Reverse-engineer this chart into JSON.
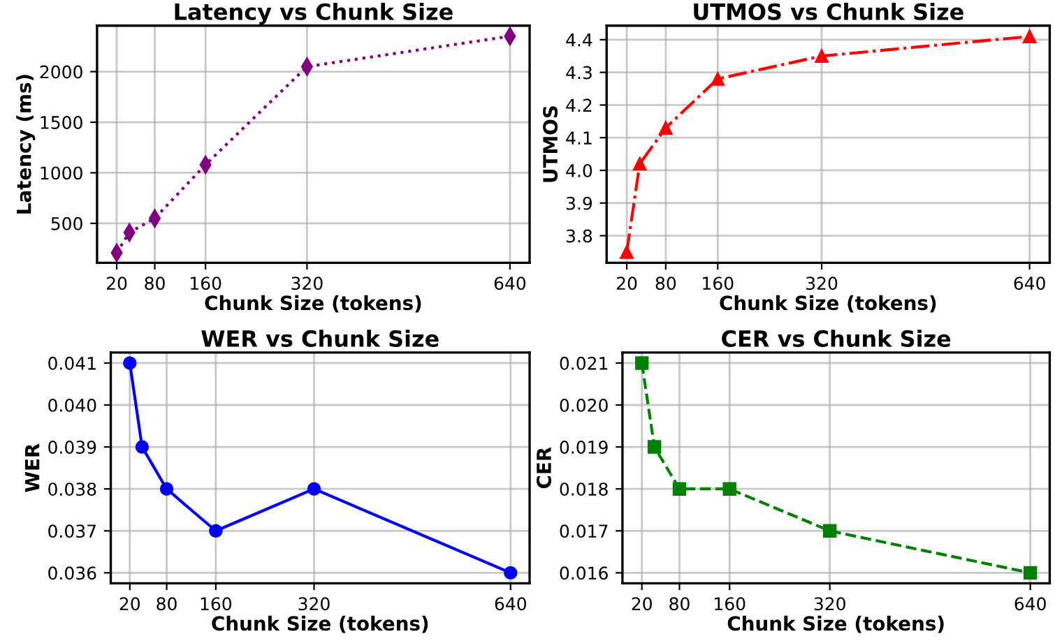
{
  "chart_data": [
    {
      "type": "line",
      "title": "Latency vs Chunk Size",
      "xlabel": "Chunk Size (tokens)",
      "ylabel": "Latency (ms)",
      "x": [
        20,
        40,
        80,
        160,
        320,
        640
      ],
      "series": [
        {
          "color": "#800080",
          "values": [
            210,
            410,
            550,
            1080,
            2050,
            2350
          ],
          "errors": [
            40,
            40,
            40,
            40,
            40,
            40
          ]
        }
      ],
      "xlim": [
        -11,
        671
      ],
      "xticks": [
        20,
        80,
        160,
        320,
        640
      ],
      "ylim": [
        110,
        2455
      ],
      "yticks": [
        500,
        1000,
        1500,
        2000
      ],
      "grid": true,
      "marker": "diamond",
      "line_style": "dotted"
    },
    {
      "type": "line",
      "title": "UTMOS vs Chunk Size",
      "xlabel": "Chunk Size (tokens)",
      "ylabel": "UTMOS",
      "x": [
        20,
        40,
        80,
        160,
        320,
        640
      ],
      "series": [
        {
          "color": "#ff0000",
          "values": [
            3.75,
            4.02,
            4.13,
            4.28,
            4.35,
            4.41
          ]
        }
      ],
      "xlim": [
        -11,
        671
      ],
      "xticks": [
        20,
        80,
        160,
        320,
        640
      ],
      "ylim": [
        3.717,
        4.443
      ],
      "yticks": [
        3.8,
        3.9,
        {
          "value": 4.0,
          "label": "4.0"
        },
        4.1,
        4.2,
        4.3,
        4.4
      ],
      "grid": true,
      "marker": "triangle",
      "line_style": "dashdot"
    },
    {
      "type": "line",
      "title": "WER vs Chunk Size",
      "xlabel": "Chunk Size (tokens)",
      "ylabel": "WER",
      "x": [
        20,
        40,
        80,
        160,
        320,
        640
      ],
      "series": [
        {
          "color": "#0000ff",
          "values": [
            0.041,
            0.039,
            0.038,
            0.037,
            0.038,
            0.036
          ]
        }
      ],
      "xlim": [
        -11,
        671
      ],
      "xticks": [
        20,
        80,
        160,
        320,
        640
      ],
      "ylim": [
        0.03575,
        0.04125
      ],
      "yticks": [
        0.036,
        0.037,
        0.038,
        0.039,
        {
          "value": 0.04,
          "label": "0.040"
        },
        0.041
      ],
      "grid": true,
      "marker": "circle",
      "line_style": "solid"
    },
    {
      "type": "line",
      "title": "CER vs Chunk Size",
      "xlabel": "Chunk Size (tokens)",
      "ylabel": "CER",
      "x": [
        20,
        40,
        80,
        160,
        320,
        640
      ],
      "series": [
        {
          "color": "#008000",
          "values": [
            0.021,
            0.019,
            0.018,
            0.018,
            0.017,
            0.016
          ]
        }
      ],
      "xlim": [
        -11,
        671
      ],
      "xticks": [
        20,
        80,
        160,
        320,
        640
      ],
      "ylim": [
        0.01575,
        0.02125
      ],
      "yticks": [
        0.016,
        0.017,
        0.018,
        0.019,
        {
          "value": 0.02,
          "label": "0.020"
        },
        0.021
      ],
      "grid": true,
      "marker": "square",
      "line_style": "dashed"
    }
  ]
}
